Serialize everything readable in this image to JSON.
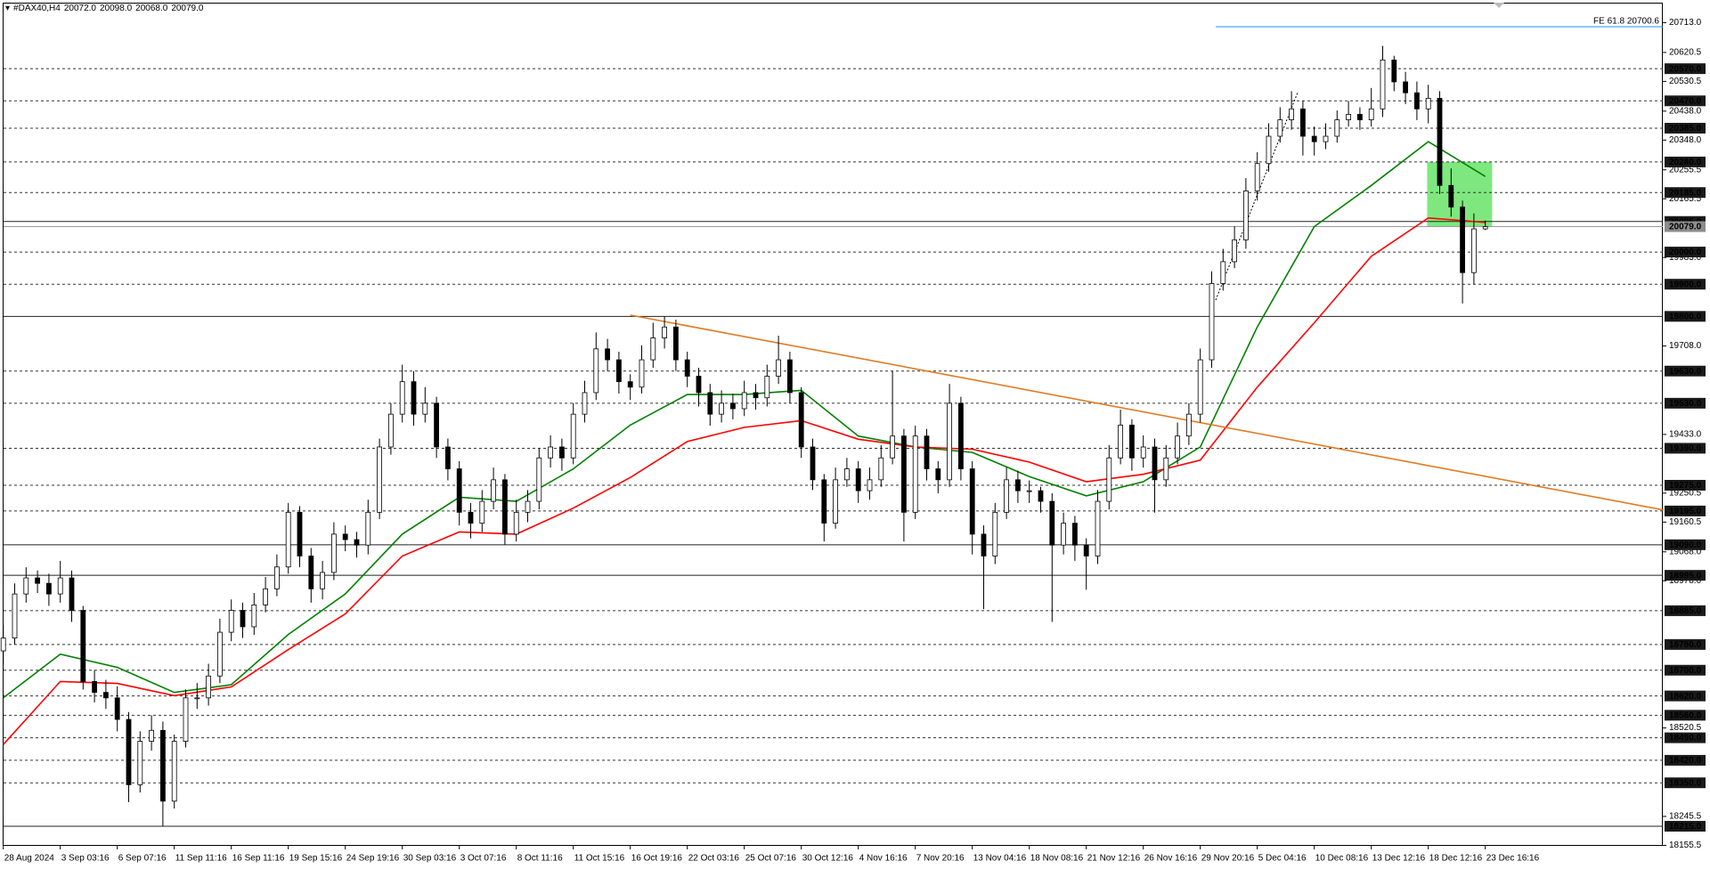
{
  "chart_data": {
    "type": "candlestick",
    "header": {
      "symbol": "#DAX40,H4",
      "ohlc": [
        "20072.0",
        "20098.0",
        "20068.0",
        "20079.0"
      ]
    },
    "categories": [
      "28 Aug 2024",
      "3 Sep 03:16",
      "6 Sep 07:16",
      "11 Sep 11:16",
      "16 Sep 11:16",
      "19 Sep 15:16",
      "24 Sep 19:16",
      "30 Sep 03:16",
      "3 Oct 07:16",
      "8 Oct 11:16",
      "11 Oct 15:16",
      "16 Oct 19:16",
      "22 Oct 03:16",
      "25 Oct 07:16",
      "30 Oct 12:16",
      "4 Nov 16:16",
      "7 Nov 20:16",
      "13 Nov 04:16",
      "18 Nov 08:16",
      "21 Nov 12:16",
      "26 Nov 16:16",
      "29 Nov 20:16",
      "5 Dec 04:16",
      "10 Dec 08:16",
      "13 Dec 12:16",
      "18 Dec 12:16",
      "23 Dec 16:16"
    ],
    "candles": {
      "up_color": "#ffffff",
      "down_color": "#000000",
      "outline": "#000000",
      "open": [
        18760,
        18800,
        18937,
        18987,
        18970,
        18937,
        18987,
        18886,
        18665,
        18631,
        18614,
        18547,
        18344,
        18479,
        18513,
        18293,
        18479,
        18614,
        18614,
        18682,
        18818,
        18886,
        18835,
        18903,
        18953,
        19021,
        19191,
        19055,
        18953,
        19004,
        19123,
        19106,
        19089,
        19191,
        19394,
        19496,
        19597,
        19496,
        19530,
        19394,
        19326,
        19191,
        19157,
        19225,
        19292,
        19123,
        19191,
        19225,
        19360,
        19394,
        19360,
        19496,
        19563,
        19699,
        19665,
        19597,
        19580,
        19665,
        19733,
        19767,
        19665,
        19614,
        19563,
        19496,
        19530,
        19513,
        19563,
        19547,
        19614,
        19665,
        19563,
        19394,
        19292,
        19157,
        19292,
        19326,
        19258,
        19292,
        19360,
        19428,
        19191,
        19428,
        19326,
        19292,
        19530,
        19326,
        19123,
        19055,
        19191,
        19292,
        19258,
        19258,
        19225,
        19089,
        19157,
        19089,
        19055,
        19225,
        19360,
        19462,
        19360,
        19394,
        19292,
        19360,
        19428,
        19496,
        19665,
        19902,
        19970,
        20038,
        20190,
        20275,
        20360,
        20411,
        20445,
        20360,
        20343,
        20360,
        20411,
        20428,
        20411,
        20445,
        20597,
        20529,
        20495,
        20445,
        20478,
        20207,
        20140,
        19936,
        20072
      ],
      "high": [
        18840,
        18970,
        19020,
        19010,
        19000,
        19040,
        19010,
        18900,
        18700,
        18670,
        18650,
        18570,
        18510,
        18560,
        18540,
        18500,
        18640,
        18660,
        18720,
        18860,
        18920,
        18910,
        18940,
        18990,
        19060,
        19220,
        19210,
        19080,
        19040,
        19160,
        19150,
        19130,
        19230,
        19420,
        19530,
        19650,
        19630,
        19580,
        19550,
        19420,
        19350,
        19220,
        19260,
        19330,
        19310,
        19230,
        19260,
        19390,
        19430,
        19420,
        19530,
        19600,
        19750,
        19730,
        19690,
        19620,
        19710,
        19780,
        19800,
        19790,
        19690,
        19640,
        19590,
        19570,
        19560,
        19600,
        19590,
        19650,
        19740,
        19690,
        19580,
        19420,
        19310,
        19330,
        19360,
        19350,
        19330,
        19400,
        19630,
        19450,
        19460,
        19450,
        19350,
        19590,
        19550,
        19350,
        19150,
        19220,
        19330,
        19320,
        19290,
        19270,
        19250,
        19190,
        19180,
        19110,
        19260,
        19400,
        19510,
        19480,
        19430,
        19420,
        19400,
        19470,
        19530,
        19700,
        19940,
        20010,
        20080,
        20230,
        20310,
        20400,
        20450,
        20500,
        20470,
        20390,
        20400,
        20440,
        20470,
        20450,
        20510,
        20641,
        20610,
        20560,
        20530,
        20520,
        20500,
        20260,
        20160,
        20120,
        20098
      ],
      "low": [
        18720,
        18780,
        18910,
        18940,
        18900,
        18910,
        18850,
        18640,
        18600,
        18580,
        18510,
        18290,
        18320,
        18450,
        18215,
        18270,
        18460,
        18580,
        18590,
        18660,
        18790,
        18800,
        18810,
        18880,
        18930,
        19000,
        19020,
        18910,
        18920,
        18980,
        19070,
        19050,
        19060,
        19170,
        19370,
        19470,
        19460,
        19470,
        19360,
        19290,
        19150,
        19110,
        19130,
        19200,
        19090,
        19100,
        19160,
        19200,
        19330,
        19320,
        19340,
        19470,
        19540,
        19630,
        19560,
        19540,
        19560,
        19640,
        19700,
        19630,
        19580,
        19520,
        19460,
        19470,
        19480,
        19490,
        19510,
        19520,
        19590,
        19530,
        19360,
        19260,
        19100,
        19140,
        19270,
        19220,
        19230,
        19270,
        19340,
        19100,
        19170,
        19290,
        19250,
        19270,
        19290,
        19060,
        18890,
        19030,
        19170,
        19220,
        19220,
        19190,
        18850,
        19060,
        19040,
        18950,
        19030,
        19200,
        19340,
        19320,
        19330,
        19190,
        19270,
        19340,
        19400,
        19470,
        19640,
        19880,
        19950,
        20010,
        20160,
        20250,
        20340,
        20380,
        20300,
        20300,
        20320,
        20340,
        20390,
        20380,
        20390,
        20420,
        20500,
        20460,
        20410,
        20400,
        20180,
        20110,
        19840,
        19900,
        20068
      ],
      "close": [
        18800,
        18937,
        18987,
        18970,
        18937,
        18987,
        18886,
        18665,
        18631,
        18614,
        18547,
        18344,
        18479,
        18513,
        18293,
        18479,
        18614,
        18614,
        18682,
        18818,
        18886,
        18835,
        18903,
        18953,
        19021,
        19191,
        19055,
        18953,
        19004,
        19123,
        19106,
        19089,
        19191,
        19394,
        19496,
        19597,
        19496,
        19530,
        19394,
        19326,
        19191,
        19157,
        19225,
        19292,
        19123,
        19191,
        19225,
        19360,
        19394,
        19360,
        19496,
        19563,
        19699,
        19665,
        19597,
        19580,
        19665,
        19733,
        19767,
        19665,
        19614,
        19563,
        19496,
        19530,
        19513,
        19563,
        19547,
        19614,
        19665,
        19563,
        19394,
        19292,
        19157,
        19292,
        19326,
        19258,
        19292,
        19360,
        19428,
        19191,
        19428,
        19326,
        19292,
        19530,
        19326,
        19123,
        19055,
        19191,
        19292,
        19258,
        19258,
        19225,
        19089,
        19157,
        19089,
        19055,
        19225,
        19360,
        19462,
        19360,
        19394,
        19292,
        19360,
        19428,
        19496,
        19665,
        19902,
        19970,
        20038,
        20190,
        20275,
        20360,
        20411,
        20445,
        20360,
        20343,
        20360,
        20411,
        20428,
        20411,
        20445,
        20597,
        20529,
        20495,
        20445,
        20478,
        20207,
        20140,
        19936,
        20072,
        20079
      ]
    },
    "series": [
      {
        "color": "#008000",
        "values": [
          18614,
          18750,
          18709,
          18631,
          18655,
          18811,
          18937,
          19123,
          19238,
          19225,
          19326,
          19462,
          19557,
          19557,
          19570,
          19428,
          19394,
          19377,
          19302,
          19242,
          19286,
          19394,
          19767,
          20079,
          20207,
          20343,
          20235
        ]
      },
      {
        "color": "#ff0000",
        "values": [
          18469,
          18665,
          18659,
          18621,
          18648,
          18764,
          18875,
          19055,
          19130,
          19123,
          19204,
          19299,
          19411,
          19455,
          19476,
          19418,
          19394,
          19387,
          19347,
          19286,
          19309,
          19353,
          19580,
          19780,
          19987,
          20106,
          20092
        ]
      }
    ],
    "ylim": [
      18154,
      20783.5
    ],
    "yticks": [
      {
        "value": 20713,
        "label": "20713.0"
      },
      {
        "value": 20620.5,
        "label": "20620.5"
      },
      {
        "value": 20530.5,
        "label": "20530.5"
      },
      {
        "value": 20438,
        "label": "20438.0"
      },
      {
        "value": 20348,
        "label": "20348.0"
      },
      {
        "value": 20255.5,
        "label": "20255.5"
      },
      {
        "value": 20165.5,
        "label": "20165.5"
      },
      {
        "value": 19983,
        "label": "19983.0"
      },
      {
        "value": 19708,
        "label": "19708.0"
      },
      {
        "value": 19433,
        "label": "19433.0"
      },
      {
        "value": 19250.5,
        "label": "19250.5"
      },
      {
        "value": 19160.5,
        "label": "19160.5"
      },
      {
        "value": 19068,
        "label": "19068.0"
      },
      {
        "value": 18978,
        "label": "18978.0"
      },
      {
        "value": 18520.5,
        "label": "18520.5"
      },
      {
        "value": 18245.5,
        "label": "18245.5"
      },
      {
        "value": 18155.5,
        "label": "18155.5"
      }
    ],
    "levels": [
      {
        "value": 20570,
        "label": "20570.0",
        "style": "dashed"
      },
      {
        "value": 20470,
        "label": "20470.0",
        "style": "dashed"
      },
      {
        "value": 20385,
        "label": "20385.0",
        "style": "dashed"
      },
      {
        "value": 20280,
        "label": "20280.0",
        "style": "dashed"
      },
      {
        "value": 20185,
        "label": "20185.0",
        "style": "dashed"
      },
      {
        "value": 20095,
        "label": "20095.0",
        "style": "solid"
      },
      {
        "value": 20079,
        "label": "20079.0",
        "style": "price"
      },
      {
        "value": 20000,
        "label": "20000.0",
        "style": "dashed"
      },
      {
        "value": 19900,
        "label": "19900.0",
        "style": "dashed"
      },
      {
        "value": 19800,
        "label": "19800.0",
        "style": "solid"
      },
      {
        "value": 19630,
        "label": "19630.0",
        "style": "dashed"
      },
      {
        "value": 19530,
        "label": "19530.0",
        "style": "dashed"
      },
      {
        "value": 19390,
        "label": "19390.0",
        "style": "dashed"
      },
      {
        "value": 19275,
        "label": "19275.0",
        "style": "dashed"
      },
      {
        "value": 19195,
        "label": "19195.0",
        "style": "dashed"
      },
      {
        "value": 19090,
        "label": "19090.0",
        "style": "solid"
      },
      {
        "value": 18995,
        "label": "18995.0",
        "style": "solid"
      },
      {
        "value": 18885,
        "label": "18885.0",
        "style": "dashed"
      },
      {
        "value": 18780,
        "label": "18780.0",
        "style": "dashed"
      },
      {
        "value": 18700,
        "label": "18700.0",
        "style": "dashed"
      },
      {
        "value": 18620,
        "label": "18620.0",
        "style": "dashed"
      },
      {
        "value": 18560,
        "label": "18560.0",
        "style": "dashed"
      },
      {
        "value": 18490,
        "label": "18490.0",
        "style": "dashed"
      },
      {
        "value": 18420,
        "label": "18420.0",
        "style": "dashed"
      },
      {
        "value": 18350,
        "label": "18350.0",
        "style": "dashed"
      },
      {
        "value": 18215,
        "label": "18215.0",
        "style": "solid"
      }
    ],
    "fibo": {
      "value": 20700.6,
      "label": "FE 61.8 20700.6",
      "color": "#1e90ff"
    },
    "trendline": {
      "color": "#e07b24",
      "x": [
        11,
        29.13
      ],
      "y": [
        19804,
        19198
      ]
    },
    "zone": {
      "color": "#7ee87e",
      "x": [
        24.98,
        26.12
      ],
      "y": [
        20280,
        20079
      ]
    }
  }
}
